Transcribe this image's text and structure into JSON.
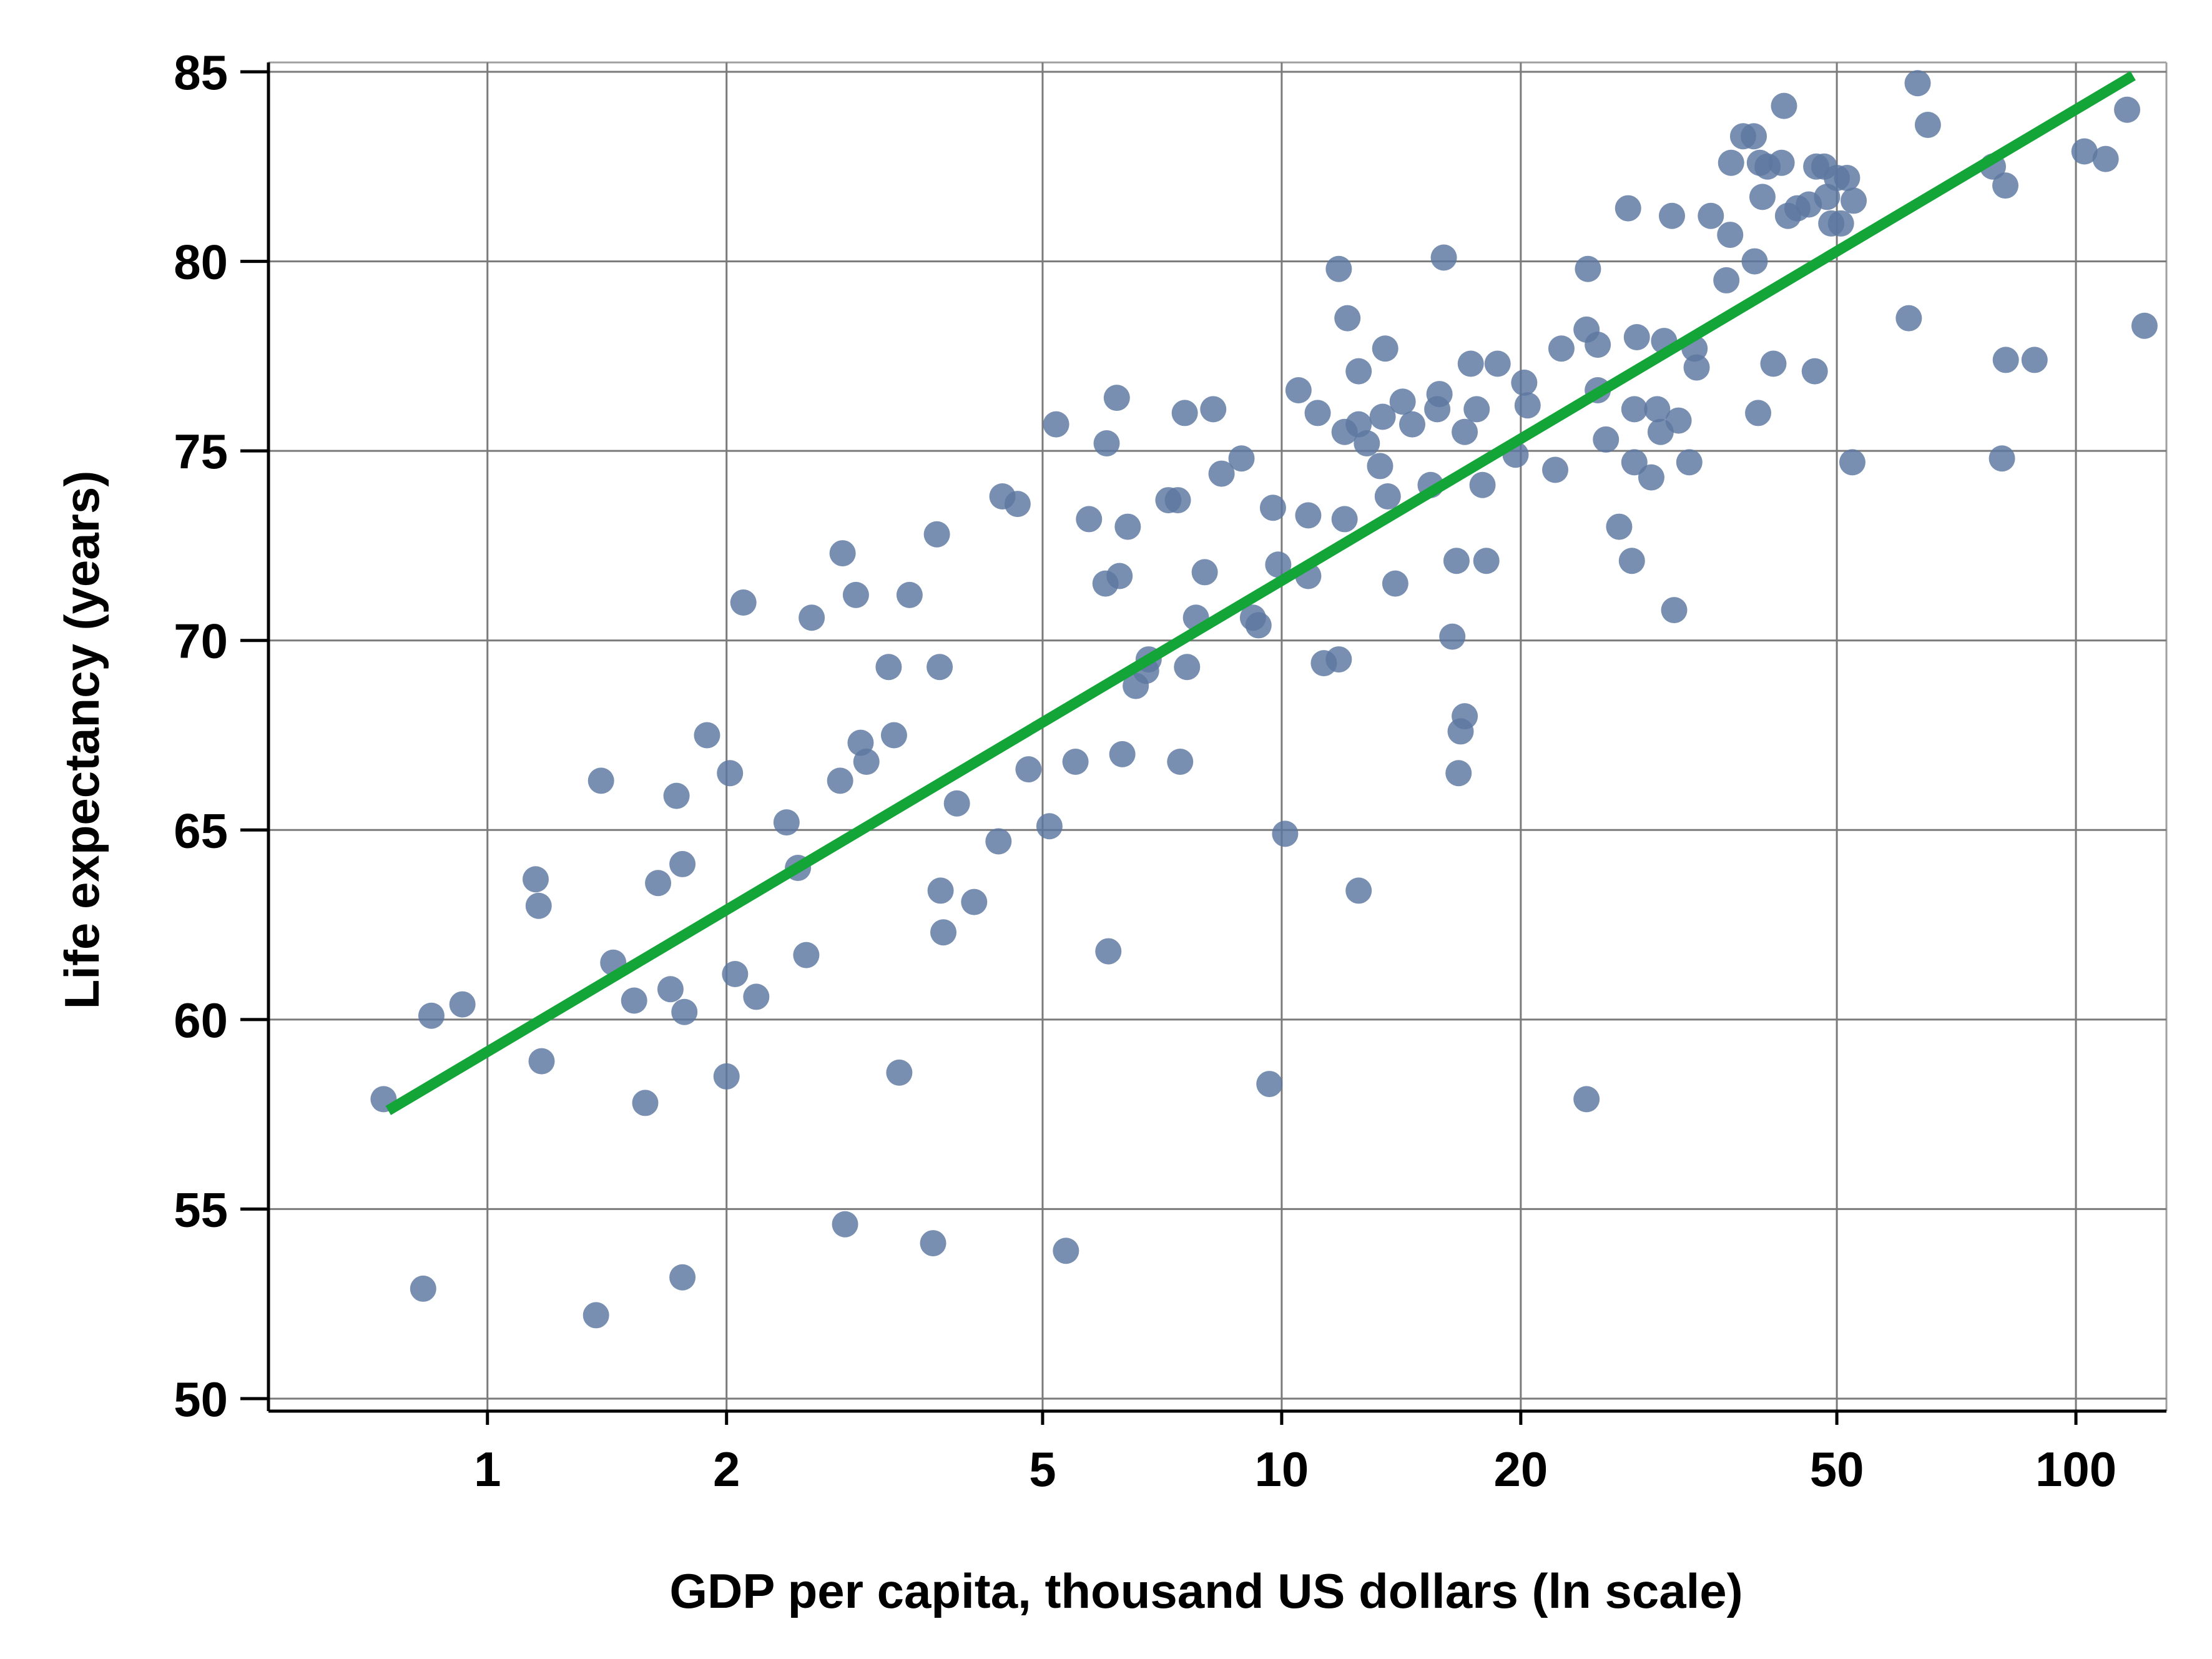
{
  "chart_data": {
    "type": "scatter",
    "title": "",
    "xlabel": "GDP per capita, thousand US dollars (ln scale)",
    "ylabel": "Life expectancy  (years)",
    "x_scale": "log",
    "xlim": [
      0.53,
      130
    ],
    "ylim": [
      50,
      85
    ],
    "x_ticks": [
      1,
      2,
      5,
      10,
      20,
      50,
      100
    ],
    "x_tick_labels": [
      "1",
      "2",
      "5",
      "10",
      "20",
      "50",
      "100"
    ],
    "y_ticks": [
      50,
      55,
      60,
      65,
      70,
      75,
      80,
      85
    ],
    "y_tick_labels": [
      "50",
      "55",
      "60",
      "65",
      "70",
      "75",
      "80",
      "85"
    ],
    "grid": true,
    "legend": "none",
    "point_color": "#5b76a0",
    "line_color": "#13a538",
    "fit_line": {
      "x": [
        0.75,
        118
      ],
      "y": [
        57.6,
        84.9
      ]
    },
    "points": [
      [
        0.74,
        57.9
      ],
      [
        0.83,
        52.9
      ],
      [
        0.85,
        60.1
      ],
      [
        0.93,
        60.4
      ],
      [
        1.15,
        63.7
      ],
      [
        1.16,
        63.0
      ],
      [
        1.17,
        58.9
      ],
      [
        1.39,
        66.3
      ],
      [
        1.37,
        52.2
      ],
      [
        1.44,
        61.5
      ],
      [
        1.53,
        60.5
      ],
      [
        1.58,
        57.8
      ],
      [
        1.64,
        63.6
      ],
      [
        1.7,
        60.8
      ],
      [
        1.73,
        65.9
      ],
      [
        1.76,
        64.1
      ],
      [
        1.77,
        60.2
      ],
      [
        1.76,
        53.2
      ],
      [
        1.89,
        67.5
      ],
      [
        2.02,
        66.5
      ],
      [
        2.05,
        61.2
      ],
      [
        2.0,
        58.5
      ],
      [
        2.1,
        71.0
      ],
      [
        2.18,
        60.6
      ],
      [
        2.38,
        65.2
      ],
      [
        2.46,
        64.0
      ],
      [
        2.52,
        61.7
      ],
      [
        2.56,
        70.6
      ],
      [
        2.8,
        72.3
      ],
      [
        2.78,
        66.3
      ],
      [
        2.82,
        54.6
      ],
      [
        2.91,
        71.2
      ],
      [
        2.95,
        67.3
      ],
      [
        3.0,
        66.8
      ],
      [
        3.2,
        69.3
      ],
      [
        3.25,
        67.5
      ],
      [
        3.3,
        58.6
      ],
      [
        3.4,
        71.2
      ],
      [
        3.64,
        54.1
      ],
      [
        3.68,
        72.8
      ],
      [
        3.71,
        69.3
      ],
      [
        3.72,
        63.4
      ],
      [
        3.75,
        62.3
      ],
      [
        3.9,
        65.7
      ],
      [
        4.1,
        63.1
      ],
      [
        4.4,
        64.7
      ],
      [
        4.45,
        73.8
      ],
      [
        4.65,
        73.6
      ],
      [
        4.8,
        66.6
      ],
      [
        5.1,
        65.1
      ],
      [
        5.2,
        75.7
      ],
      [
        5.35,
        53.9
      ],
      [
        5.5,
        66.8
      ],
      [
        5.72,
        73.2
      ],
      [
        6.02,
        75.2
      ],
      [
        6.0,
        71.5
      ],
      [
        6.05,
        61.8
      ],
      [
        6.2,
        76.4
      ],
      [
        6.25,
        71.7
      ],
      [
        6.3,
        67.0
      ],
      [
        6.4,
        73.0
      ],
      [
        6.55,
        68.8
      ],
      [
        6.75,
        69.2
      ],
      [
        6.8,
        69.5
      ],
      [
        7.2,
        73.7
      ],
      [
        7.4,
        73.7
      ],
      [
        7.45,
        66.8
      ],
      [
        7.55,
        76.0
      ],
      [
        7.6,
        69.3
      ],
      [
        7.8,
        70.6
      ],
      [
        8.0,
        71.8
      ],
      [
        8.2,
        76.1
      ],
      [
        8.4,
        74.4
      ],
      [
        8.9,
        74.8
      ],
      [
        9.2,
        70.6
      ],
      [
        9.35,
        70.4
      ],
      [
        9.65,
        58.3
      ],
      [
        9.75,
        73.5
      ],
      [
        9.9,
        72.0
      ],
      [
        10.1,
        64.9
      ],
      [
        10.5,
        76.6
      ],
      [
        10.8,
        73.3
      ],
      [
        10.8,
        71.7
      ],
      [
        11.1,
        76.0
      ],
      [
        11.3,
        69.4
      ],
      [
        11.8,
        69.5
      ],
      [
        11.8,
        79.8
      ],
      [
        12.1,
        78.5
      ],
      [
        12.0,
        75.5
      ],
      [
        12.0,
        73.2
      ],
      [
        12.5,
        77.1
      ],
      [
        12.5,
        75.7
      ],
      [
        12.5,
        63.4
      ],
      [
        12.8,
        75.2
      ],
      [
        13.3,
        74.6
      ],
      [
        13.4,
        75.9
      ],
      [
        13.5,
        77.7
      ],
      [
        13.6,
        73.8
      ],
      [
        13.9,
        71.5
      ],
      [
        14.2,
        76.3
      ],
      [
        14.6,
        75.7
      ],
      [
        15.4,
        74.1
      ],
      [
        15.7,
        76.1
      ],
      [
        15.8,
        76.5
      ],
      [
        16.0,
        80.1
      ],
      [
        16.4,
        70.1
      ],
      [
        16.6,
        72.1
      ],
      [
        16.8,
        67.6
      ],
      [
        16.7,
        66.5
      ],
      [
        17.0,
        68.0
      ],
      [
        17.0,
        75.5
      ],
      [
        17.3,
        77.3
      ],
      [
        17.6,
        76.1
      ],
      [
        17.9,
        74.1
      ],
      [
        18.1,
        72.1
      ],
      [
        18.7,
        77.3
      ],
      [
        19.7,
        74.9
      ],
      [
        20.2,
        76.8
      ],
      [
        20.4,
        76.2
      ],
      [
        22.1,
        74.5
      ],
      [
        22.5,
        77.7
      ],
      [
        24.2,
        78.2
      ],
      [
        24.3,
        79.8
      ],
      [
        24.2,
        57.9
      ],
      [
        25.0,
        77.8
      ],
      [
        25.0,
        76.6
      ],
      [
        25.6,
        75.3
      ],
      [
        26.6,
        73.0
      ],
      [
        27.3,
        81.4
      ],
      [
        27.6,
        72.1
      ],
      [
        27.8,
        74.7
      ],
      [
        27.8,
        76.1
      ],
      [
        28.0,
        78.0
      ],
      [
        29.2,
        74.3
      ],
      [
        29.7,
        76.1
      ],
      [
        30.0,
        75.5
      ],
      [
        30.3,
        77.9
      ],
      [
        31.0,
        81.2
      ],
      [
        31.2,
        70.8
      ],
      [
        31.6,
        75.8
      ],
      [
        32.6,
        74.7
      ],
      [
        33.1,
        77.7
      ],
      [
        33.3,
        77.2
      ],
      [
        34.7,
        81.2
      ],
      [
        36.3,
        79.5
      ],
      [
        36.7,
        80.7
      ],
      [
        36.8,
        82.6
      ],
      [
        38.1,
        83.3
      ],
      [
        39.3,
        83.3
      ],
      [
        39.4,
        80.0
      ],
      [
        39.8,
        76.0
      ],
      [
        40.0,
        82.6
      ],
      [
        40.3,
        81.7
      ],
      [
        40.9,
        82.5
      ],
      [
        41.6,
        77.3
      ],
      [
        42.6,
        82.6
      ],
      [
        42.9,
        84.1
      ],
      [
        43.4,
        81.2
      ],
      [
        44.6,
        81.4
      ],
      [
        46.1,
        81.5
      ],
      [
        46.9,
        77.1
      ],
      [
        47.1,
        82.5
      ],
      [
        48.2,
        82.5
      ],
      [
        48.6,
        81.7
      ],
      [
        49.2,
        81.0
      ],
      [
        50.0,
        82.2
      ],
      [
        50.6,
        81.0
      ],
      [
        51.5,
        82.2
      ],
      [
        52.5,
        81.6
      ],
      [
        52.3,
        74.7
      ],
      [
        61.6,
        78.5
      ],
      [
        63.2,
        84.7
      ],
      [
        65.1,
        83.6
      ],
      [
        78.6,
        82.5
      ],
      [
        80.7,
        74.8
      ],
      [
        81.5,
        82.0
      ],
      [
        81.6,
        77.4
      ],
      [
        88.7,
        77.4
      ],
      [
        102.5,
        82.9
      ],
      [
        109.0,
        82.7
      ],
      [
        116.0,
        84.0
      ],
      [
        122.0,
        78.3
      ]
    ]
  }
}
